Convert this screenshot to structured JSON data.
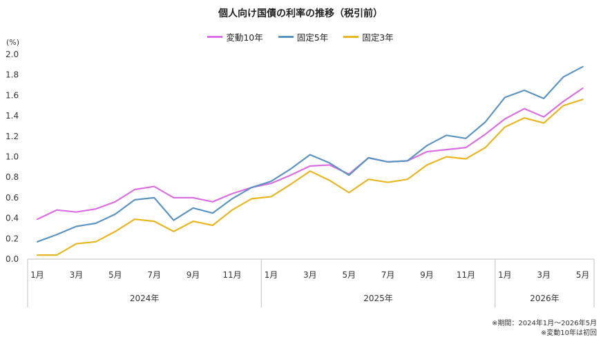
{
  "chart_data": {
    "type": "line",
    "title": "個人向け国債の利率の推移（税引前）",
    "ylabel": "(%)",
    "ylim": [
      0,
      2.0
    ],
    "yticks": [
      "0.0",
      "0.2",
      "0.4",
      "0.6",
      "0.8",
      "1.0",
      "1.2",
      "1.4",
      "1.6",
      "1.8",
      "2.0"
    ],
    "x_tick_labels": [
      "1月",
      "",
      "3月",
      "",
      "5月",
      "",
      "7月",
      "",
      "9月",
      "",
      "11月",
      "",
      "1月",
      "",
      "3月",
      "",
      "5月",
      "",
      "7月",
      "",
      "9月",
      "",
      "11月",
      "",
      "1月",
      "",
      "3月",
      "",
      "5月"
    ],
    "year_groups": [
      {
        "label": "2024年",
        "months": 12
      },
      {
        "label": "2025年",
        "months": 12
      },
      {
        "label": "2026年",
        "months": 5
      }
    ],
    "legend_position": "top-center",
    "grid": false,
    "series": [
      {
        "name": "変動10年",
        "color": "#d96fe0",
        "values": [
          0.39,
          0.48,
          0.46,
          0.49,
          0.56,
          0.68,
          0.71,
          0.6,
          0.6,
          0.56,
          0.64,
          0.7,
          0.74,
          0.82,
          0.91,
          0.92,
          0.83,
          0.99,
          0.95,
          0.96,
          1.05,
          1.07,
          1.09,
          1.22,
          1.37,
          1.47,
          1.39,
          1.54,
          1.67
        ]
      },
      {
        "name": "固定5年",
        "color": "#5b93c1",
        "values": [
          0.17,
          0.24,
          0.32,
          0.35,
          0.44,
          0.58,
          0.6,
          0.38,
          0.5,
          0.45,
          0.59,
          0.7,
          0.76,
          0.88,
          1.02,
          0.94,
          0.82,
          0.99,
          0.95,
          0.96,
          1.11,
          1.21,
          1.18,
          1.34,
          1.58,
          1.65,
          1.57,
          1.78,
          1.88
        ]
      },
      {
        "name": "固定3年",
        "color": "#e8b61f",
        "values": [
          0.04,
          0.04,
          0.15,
          0.17,
          0.27,
          0.39,
          0.37,
          0.27,
          0.37,
          0.33,
          0.48,
          0.59,
          0.61,
          0.73,
          0.86,
          0.77,
          0.65,
          0.78,
          0.75,
          0.78,
          0.92,
          1.0,
          0.98,
          1.09,
          1.29,
          1.38,
          1.33,
          1.5,
          1.56
        ]
      }
    ]
  },
  "footnotes": {
    "period": "※期間：2024年1月～2026年5月",
    "note": "※変動10年は初回"
  }
}
